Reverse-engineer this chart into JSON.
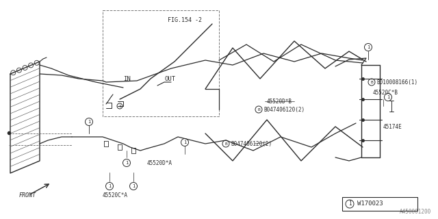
{
  "bg_color": "#ffffff",
  "line_color": "#2a2a2a",
  "fig_width": 6.4,
  "fig_height": 3.2,
  "dpi": 100,
  "labels": {
    "fig_ref": "FIG.154 -2",
    "in_label": "IN",
    "out_label": "OUT",
    "part_45520DA": "45520D*A",
    "part_45520CA": "45520C*A",
    "part_45520CB": "45520C*B",
    "part_45520DB": "45520D*B",
    "part_B047406120_2a": "B047406120(2)",
    "part_B047406120_2b": "B047406120(2)",
    "part_B010008166": "B010008166(1)",
    "part_45174E": "45174E",
    "part_W170023": "W170023",
    "front_label": "FRONT",
    "figure_num": "A450001200"
  }
}
